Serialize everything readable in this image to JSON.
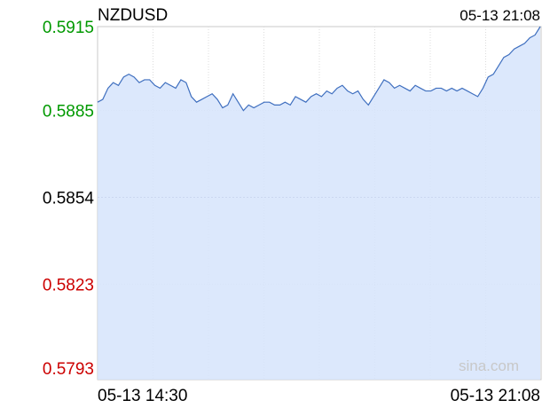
{
  "chart_data": {
    "type": "area",
    "symbol": "NZDUSD",
    "timestamp": "05-13 21:08",
    "watermark": "sina.com",
    "x_labels": [
      "05-13 14:30",
      "05-13 21:08"
    ],
    "y_ticks": [
      {
        "value": 0.5915,
        "label": "0.5915",
        "color": "#009900"
      },
      {
        "value": 0.5885,
        "label": "0.5885",
        "color": "#009900"
      },
      {
        "value": 0.5854,
        "label": "0.5854",
        "color": "#000000"
      },
      {
        "value": 0.5823,
        "label": "0.5823",
        "color": "#cc0000"
      },
      {
        "value": 0.5793,
        "label": "0.5793",
        "color": "#cc0000"
      }
    ],
    "ylim": [
      0.5793,
      0.5915
    ],
    "reference_price": 0.5854,
    "line_color": "#3f6fbf",
    "fill_color": "#d6e4fb",
    "grid": true,
    "series": [
      {
        "values": [
          0.5888,
          0.5889,
          0.5893,
          0.5895,
          0.5894,
          0.5897,
          0.5898,
          0.5897,
          0.5895,
          0.5896,
          0.5896,
          0.5894,
          0.5893,
          0.5895,
          0.5894,
          0.5893,
          0.5896,
          0.5895,
          0.589,
          0.5888,
          0.5889,
          0.589,
          0.5891,
          0.5889,
          0.5886,
          0.5887,
          0.5891,
          0.5888,
          0.5885,
          0.5887,
          0.5886,
          0.5887,
          0.5888,
          0.5888,
          0.5887,
          0.5887,
          0.5888,
          0.5887,
          0.589,
          0.5889,
          0.5888,
          0.589,
          0.5891,
          0.589,
          0.5892,
          0.5891,
          0.5893,
          0.5894,
          0.5892,
          0.5891,
          0.5892,
          0.5889,
          0.5887,
          0.589,
          0.5893,
          0.5896,
          0.5895,
          0.5893,
          0.5894,
          0.5893,
          0.5892,
          0.5894,
          0.5893,
          0.5892,
          0.5892,
          0.5893,
          0.5893,
          0.5892,
          0.5893,
          0.5892,
          0.5893,
          0.5892,
          0.5891,
          0.589,
          0.5893,
          0.5897,
          0.5898,
          0.5901,
          0.5904,
          0.5905,
          0.5907,
          0.5908,
          0.5909,
          0.5911,
          0.5912,
          0.5915
        ]
      }
    ]
  }
}
